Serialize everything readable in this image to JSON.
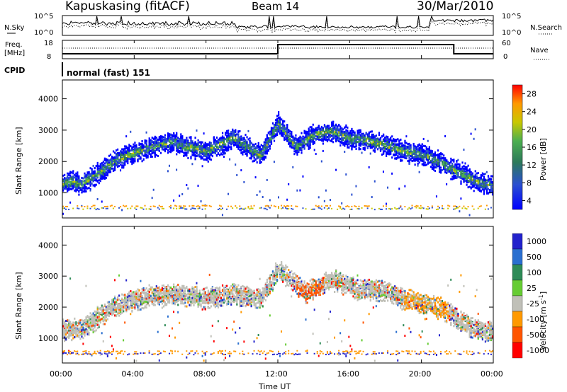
{
  "header": {
    "station": "Kapuskasing (fitACF)",
    "beam": "Beam 14",
    "date": "30/Mar/2010"
  },
  "noise_panel": {
    "left_label": "N.Sky",
    "right_label": "N.Search",
    "left_ticks": [
      "10^5",
      "10^0"
    ],
    "right_ticks": [
      "10^5",
      "10^0"
    ]
  },
  "freq_panel": {
    "left_label_1": "Freq.",
    "left_label_2": "[MHz]",
    "right_label": "Nave",
    "left_ticks": [
      "18",
      "8"
    ],
    "right_ticks": [
      "60",
      "0"
    ]
  },
  "cpid": {
    "label": "CPID",
    "mode": "normal (fast) 151"
  },
  "x_axis": {
    "label": "Time UT",
    "ticks": [
      "00:00",
      "04:00",
      "08:00",
      "12:00",
      "16:00",
      "20:00",
      "00:00"
    ]
  },
  "chart_data": [
    {
      "type": "heatmap",
      "name": "power",
      "ylabel": "Slant Range [km]",
      "y_ticks": [
        1000,
        2000,
        3000,
        4000
      ],
      "ylim": [
        200,
        4600
      ],
      "xlim_hours": [
        0,
        24
      ],
      "colorbar_label": "Power [dB]",
      "colorbar_ticks": [
        "28",
        "24",
        "20",
        "16",
        "12",
        "8",
        "4"
      ],
      "colors": [
        "#0000ff",
        "#2a4fd0",
        "#2d7a5a",
        "#4caf50",
        "#c8c800",
        "#ff9900",
        "#ff0000"
      ],
      "band_centers_km": [
        [
          0,
          1350
        ],
        [
          0.5,
          1400
        ],
        [
          1,
          1300
        ],
        [
          2,
          1650
        ],
        [
          3,
          2100
        ],
        [
          4,
          2300
        ],
        [
          5,
          2500
        ],
        [
          6,
          2650
        ],
        [
          7,
          2500
        ],
        [
          8,
          2350
        ],
        [
          9.5,
          2800
        ],
        [
          11,
          2200
        ],
        [
          12,
          3250
        ],
        [
          13,
          2500
        ],
        [
          14,
          2900
        ],
        [
          15,
          3000
        ],
        [
          16,
          2750
        ],
        [
          17,
          2700
        ],
        [
          18,
          2550
        ],
        [
          19,
          2350
        ],
        [
          20,
          2250
        ],
        [
          21,
          2000
        ],
        [
          22,
          1700
        ],
        [
          23,
          1400
        ],
        [
          24,
          1250
        ]
      ]
    },
    {
      "type": "heatmap",
      "name": "velocity",
      "ylabel": "Slant Range [km]",
      "y_ticks": [
        1000,
        2000,
        3000,
        4000
      ],
      "ylim": [
        200,
        4600
      ],
      "xlim_hours": [
        0,
        24
      ],
      "colorbar_label": "Velocity [m s^-1]",
      "colorbar_ticks": [
        "1000",
        "500",
        "100",
        "25",
        "-25",
        "-100",
        "-500",
        "-1000"
      ],
      "colors": [
        "#2222cc",
        "#2a6fd0",
        "#2e8b57",
        "#66cc33",
        "#c0c0b8",
        "#ff9900",
        "#ff5500",
        "#ff0000"
      ],
      "band_centers_km": [
        [
          0,
          1300
        ],
        [
          1,
          1300
        ],
        [
          2,
          1700
        ],
        [
          3,
          2100
        ],
        [
          4,
          2250
        ],
        [
          5,
          2400
        ],
        [
          6,
          2450
        ],
        [
          7,
          2400
        ],
        [
          8,
          2300
        ],
        [
          9.5,
          2450
        ],
        [
          11,
          2300
        ],
        [
          12,
          3250
        ],
        [
          13.5,
          2500
        ],
        [
          15,
          2900
        ],
        [
          16.5,
          2600
        ],
        [
          18,
          2550
        ],
        [
          19,
          2300
        ],
        [
          20,
          2150
        ],
        [
          21,
          2000
        ],
        [
          22,
          1650
        ],
        [
          23,
          1300
        ],
        [
          24,
          1250
        ]
      ]
    }
  ]
}
